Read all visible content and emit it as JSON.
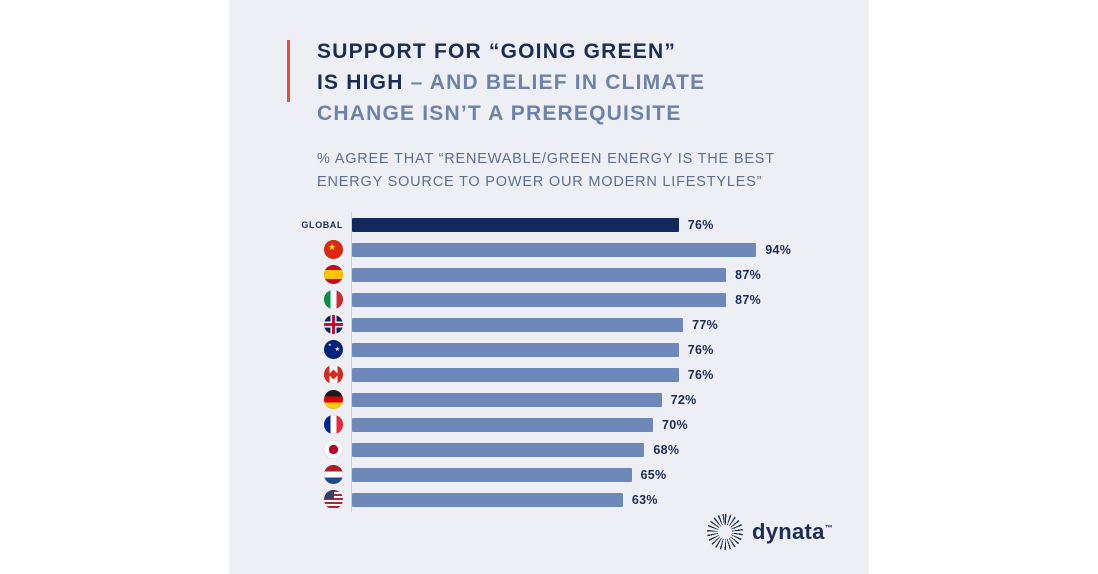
{
  "colors": {
    "page_background": "#ffffff",
    "card_background": "#edeff4",
    "accent_red": "#e2513c",
    "title_strong": "#1b2c55",
    "title_light": "#6d82a8",
    "bar_global": "#14295b",
    "bar_country": "#6f88ba",
    "value_label": "#1b2c55"
  },
  "header": {
    "title_line1": "SUPPORT FOR “GOING GREEN”",
    "title_line2_strong": "IS HIGH",
    "title_line2_light": " – AND BELIEF IN CLIMATE",
    "title_line3_light": "CHANGE ISN’T A PREREQUISITE"
  },
  "subtitle": {
    "line1": "% AGREE THAT “RENEWABLE/GREEN ENERGY IS THE BEST",
    "line2": "ENERGY SOURCE TO POWER OUR MODERN LIFESTYLES”"
  },
  "chart_data": {
    "type": "bar",
    "orientation": "horizontal",
    "title": "% AGREE THAT “RENEWABLE/GREEN ENERGY IS THE BEST ENERGY SOURCE TO POWER OUR MODERN LIFESTYLES”",
    "xlim": [
      0,
      100
    ],
    "unit": "%",
    "grid": false,
    "legend": "none",
    "categories": [
      "GLOBAL",
      "China",
      "Spain",
      "Italy",
      "United Kingdom",
      "Australia",
      "Canada",
      "Germany",
      "France",
      "Japan",
      "Netherlands",
      "United States"
    ],
    "values": [
      76,
      94,
      87,
      87,
      77,
      76,
      76,
      72,
      70,
      68,
      65,
      63
    ],
    "rows": [
      {
        "label": "GLOBAL",
        "flag": null,
        "value": 76,
        "display": "76%",
        "emphasis": true
      },
      {
        "label": "China",
        "flag": "cn",
        "value": 94,
        "display": "94%"
      },
      {
        "label": "Spain",
        "flag": "es",
        "value": 87,
        "display": "87%"
      },
      {
        "label": "Italy",
        "flag": "it",
        "value": 87,
        "display": "87%"
      },
      {
        "label": "United Kingdom",
        "flag": "gb",
        "value": 77,
        "display": "77%"
      },
      {
        "label": "Australia",
        "flag": "au",
        "value": 76,
        "display": "76%"
      },
      {
        "label": "Canada",
        "flag": "ca",
        "value": 76,
        "display": "76%"
      },
      {
        "label": "Germany",
        "flag": "de",
        "value": 72,
        "display": "72%"
      },
      {
        "label": "France",
        "flag": "fr",
        "value": 70,
        "display": "70%"
      },
      {
        "label": "Japan",
        "flag": "jp",
        "value": 68,
        "display": "68%"
      },
      {
        "label": "Netherlands",
        "flag": "nl",
        "value": 65,
        "display": "65%"
      },
      {
        "label": "United States",
        "flag": "us",
        "value": 63,
        "display": "63%"
      }
    ]
  },
  "logo": {
    "brand": "dynata",
    "tm": "™",
    "icon": "starburst-icon"
  }
}
